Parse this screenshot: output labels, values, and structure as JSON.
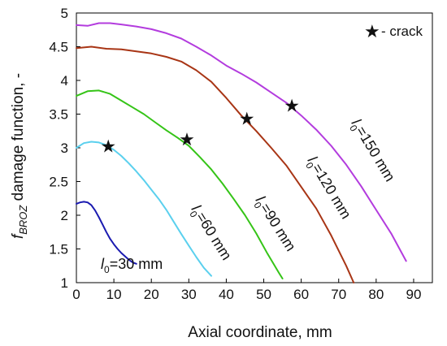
{
  "chart_data": {
    "type": "line",
    "xlabel": "Axial coordinate, mm",
    "ylabel": {
      "pre": "f",
      "sub": "BROZ",
      "post": " damage function, -"
    },
    "xlim": [
      0,
      95
    ],
    "ylim": [
      1,
      5
    ],
    "xticks": [
      "0",
      "10",
      "20",
      "30",
      "40",
      "50",
      "60",
      "70",
      "80",
      "90"
    ],
    "yticks": [
      "1",
      "1.5",
      "2",
      "2.5",
      "3",
      "3.5",
      "4",
      "4.5",
      "5"
    ],
    "grid": false,
    "legend": {
      "symbol": "★",
      "text": " - crack",
      "placement": "top-right"
    },
    "series": [
      {
        "label": "l0=30 mm",
        "label_pre": "l",
        "label_sub": "0",
        "label_post": "=30 mm",
        "color": "#1a1ab0",
        "x": [
          0,
          1,
          2,
          3,
          4,
          5,
          6,
          7,
          8,
          9,
          10,
          11,
          12,
          13,
          14,
          15,
          16
        ],
        "y": [
          2.17,
          2.19,
          2.2,
          2.19,
          2.15,
          2.07,
          1.97,
          1.86,
          1.75,
          1.65,
          1.57,
          1.5,
          1.44,
          1.39,
          1.34,
          1.3,
          1.28
        ]
      },
      {
        "label": "l0=60 mm",
        "label_pre": "l",
        "label_sub": "0",
        "label_post": "=60 mm",
        "color": "#5bd0ee",
        "x": [
          0,
          2,
          4,
          6,
          8,
          10,
          12,
          14,
          16,
          18,
          20,
          22,
          24,
          26,
          28,
          30,
          32,
          34,
          36
        ],
        "y": [
          3.0,
          3.07,
          3.09,
          3.08,
          3.04,
          2.97,
          2.88,
          2.77,
          2.65,
          2.52,
          2.38,
          2.24,
          2.08,
          1.9,
          1.72,
          1.55,
          1.38,
          1.22,
          1.1
        ]
      },
      {
        "label": "l0=90 mm",
        "label_pre": "l",
        "label_sub": "0",
        "label_post": "=90 mm",
        "color": "#35c417",
        "x": [
          0,
          3,
          6,
          9,
          12,
          15,
          18,
          21,
          24,
          27,
          30,
          33,
          36,
          39,
          42,
          45,
          48,
          51,
          54,
          55
        ],
        "y": [
          3.77,
          3.84,
          3.85,
          3.8,
          3.7,
          3.6,
          3.5,
          3.38,
          3.26,
          3.15,
          3.03,
          2.86,
          2.68,
          2.47,
          2.24,
          2.0,
          1.73,
          1.43,
          1.15,
          1.06
        ]
      },
      {
        "label": "l0=120 mm",
        "label_pre": "l",
        "label_sub": "0",
        "label_post": "=120 mm",
        "color": "#a83515",
        "x": [
          0,
          4,
          8,
          12,
          16,
          20,
          24,
          28,
          32,
          36,
          40,
          44,
          48,
          52,
          56,
          60,
          64,
          68,
          72,
          74
        ],
        "y": [
          4.48,
          4.5,
          4.47,
          4.46,
          4.43,
          4.4,
          4.35,
          4.28,
          4.15,
          3.98,
          3.74,
          3.48,
          3.25,
          3.0,
          2.74,
          2.42,
          2.1,
          1.7,
          1.25,
          1.0
        ]
      },
      {
        "label": "l0=150 mm",
        "label_pre": "l",
        "label_sub": "0",
        "label_post": "=150 mm",
        "color": "#b33cde",
        "x": [
          0,
          3,
          6,
          9,
          12,
          16,
          20,
          24,
          28,
          32,
          36,
          40,
          44,
          48,
          52,
          56,
          60,
          64,
          68,
          72,
          76,
          80,
          84,
          88
        ],
        "y": [
          4.82,
          4.81,
          4.85,
          4.85,
          4.83,
          4.8,
          4.76,
          4.7,
          4.62,
          4.5,
          4.37,
          4.22,
          4.1,
          3.97,
          3.82,
          3.67,
          3.48,
          3.27,
          3.03,
          2.75,
          2.43,
          2.08,
          1.73,
          1.32
        ]
      }
    ],
    "cracks": [
      {
        "x": 8.5,
        "y": 3.03
      },
      {
        "x": 29.5,
        "y": 3.13
      },
      {
        "x": 45.5,
        "y": 3.44
      },
      {
        "x": 57.5,
        "y": 3.63
      }
    ]
  }
}
